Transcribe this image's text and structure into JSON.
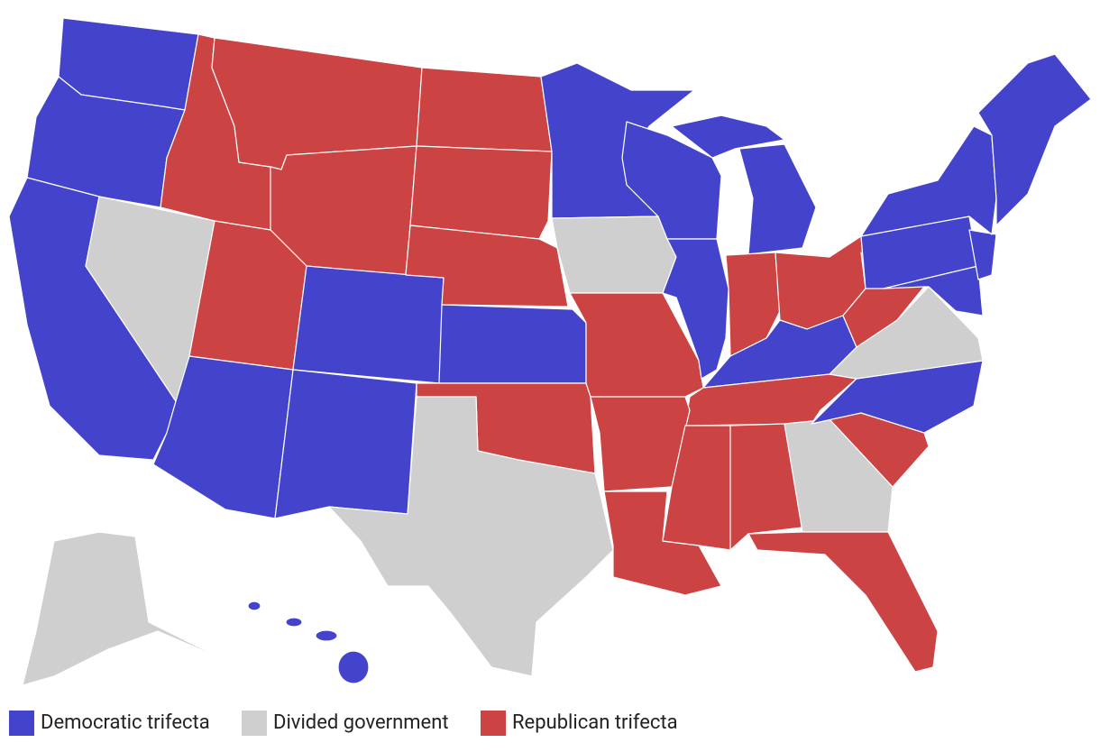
{
  "legend": [
    {
      "label": "Democratic trifecta",
      "color": "#4343cc"
    },
    {
      "label": "Divided government",
      "color": "#cfcfcf"
    },
    {
      "label": "Republican trifecta",
      "color": "#cc4343"
    }
  ]
}
